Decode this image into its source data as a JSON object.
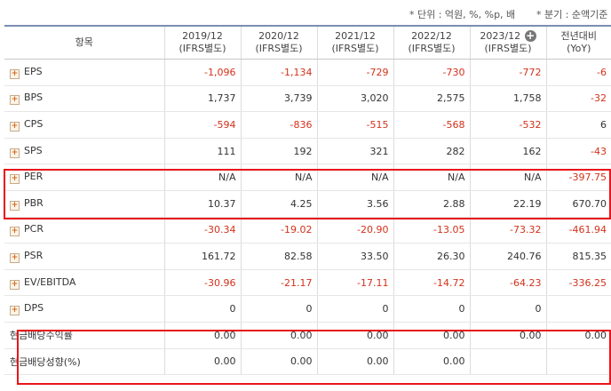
{
  "units_note": "* 단위 : 억원, %, %p, 배",
  "period_note": "* 분기 : 순액기준",
  "header": {
    "item": "항목",
    "periods": [
      {
        "year": "2019/12",
        "basis": "(IFRS별도)"
      },
      {
        "year": "2020/12",
        "basis": "(IFRS별도)"
      },
      {
        "year": "2021/12",
        "basis": "(IFRS별도)"
      },
      {
        "year": "2022/12",
        "basis": "(IFRS별도)"
      },
      {
        "year": "2023/12",
        "basis": "(IFRS별도)"
      }
    ],
    "yoy_line1": "전년대비",
    "yoy_line2": "(YoY)"
  },
  "rows": [
    {
      "label": "EPS",
      "values": [
        "-1,096",
        "-1,134",
        "-729",
        "-730",
        "-772"
      ],
      "yoy": "-6"
    },
    {
      "label": "BPS",
      "values": [
        "1,737",
        "3,739",
        "3,020",
        "2,575",
        "1,758"
      ],
      "yoy": "-32"
    },
    {
      "label": "CPS",
      "values": [
        "-594",
        "-836",
        "-515",
        "-568",
        "-532"
      ],
      "yoy": "6"
    },
    {
      "label": "SPS",
      "values": [
        "111",
        "192",
        "321",
        "282",
        "162"
      ],
      "yoy": "-43"
    },
    {
      "label": "PER",
      "values": [
        "N/A",
        "N/A",
        "N/A",
        "N/A",
        "N/A"
      ],
      "yoy": "-397.75"
    },
    {
      "label": "PBR",
      "values": [
        "10.37",
        "4.25",
        "3.56",
        "2.88",
        "22.19"
      ],
      "yoy": "670.70"
    },
    {
      "label": "PCR",
      "values": [
        "-30.34",
        "-19.02",
        "-20.90",
        "-13.05",
        "-73.32"
      ],
      "yoy": "-461.94"
    },
    {
      "label": "PSR",
      "values": [
        "161.72",
        "82.58",
        "33.50",
        "26.30",
        "240.76"
      ],
      "yoy": "815.35"
    },
    {
      "label": "EV/EBITDA",
      "values": [
        "-30.96",
        "-21.17",
        "-17.11",
        "-14.72",
        "-64.23"
      ],
      "yoy": "-336.25"
    },
    {
      "label": "DPS",
      "values": [
        "0",
        "0",
        "0",
        "0",
        "0"
      ],
      "yoy": ""
    },
    {
      "label": "현금배당수익률",
      "values": [
        "0.00",
        "0.00",
        "0.00",
        "0.00",
        "0.00"
      ],
      "yoy": "0.00"
    },
    {
      "label": "현금배당성향(%)",
      "values": [
        "0.00",
        "0.00",
        "0.00",
        "0.00",
        ""
      ],
      "yoy": ""
    }
  ]
}
